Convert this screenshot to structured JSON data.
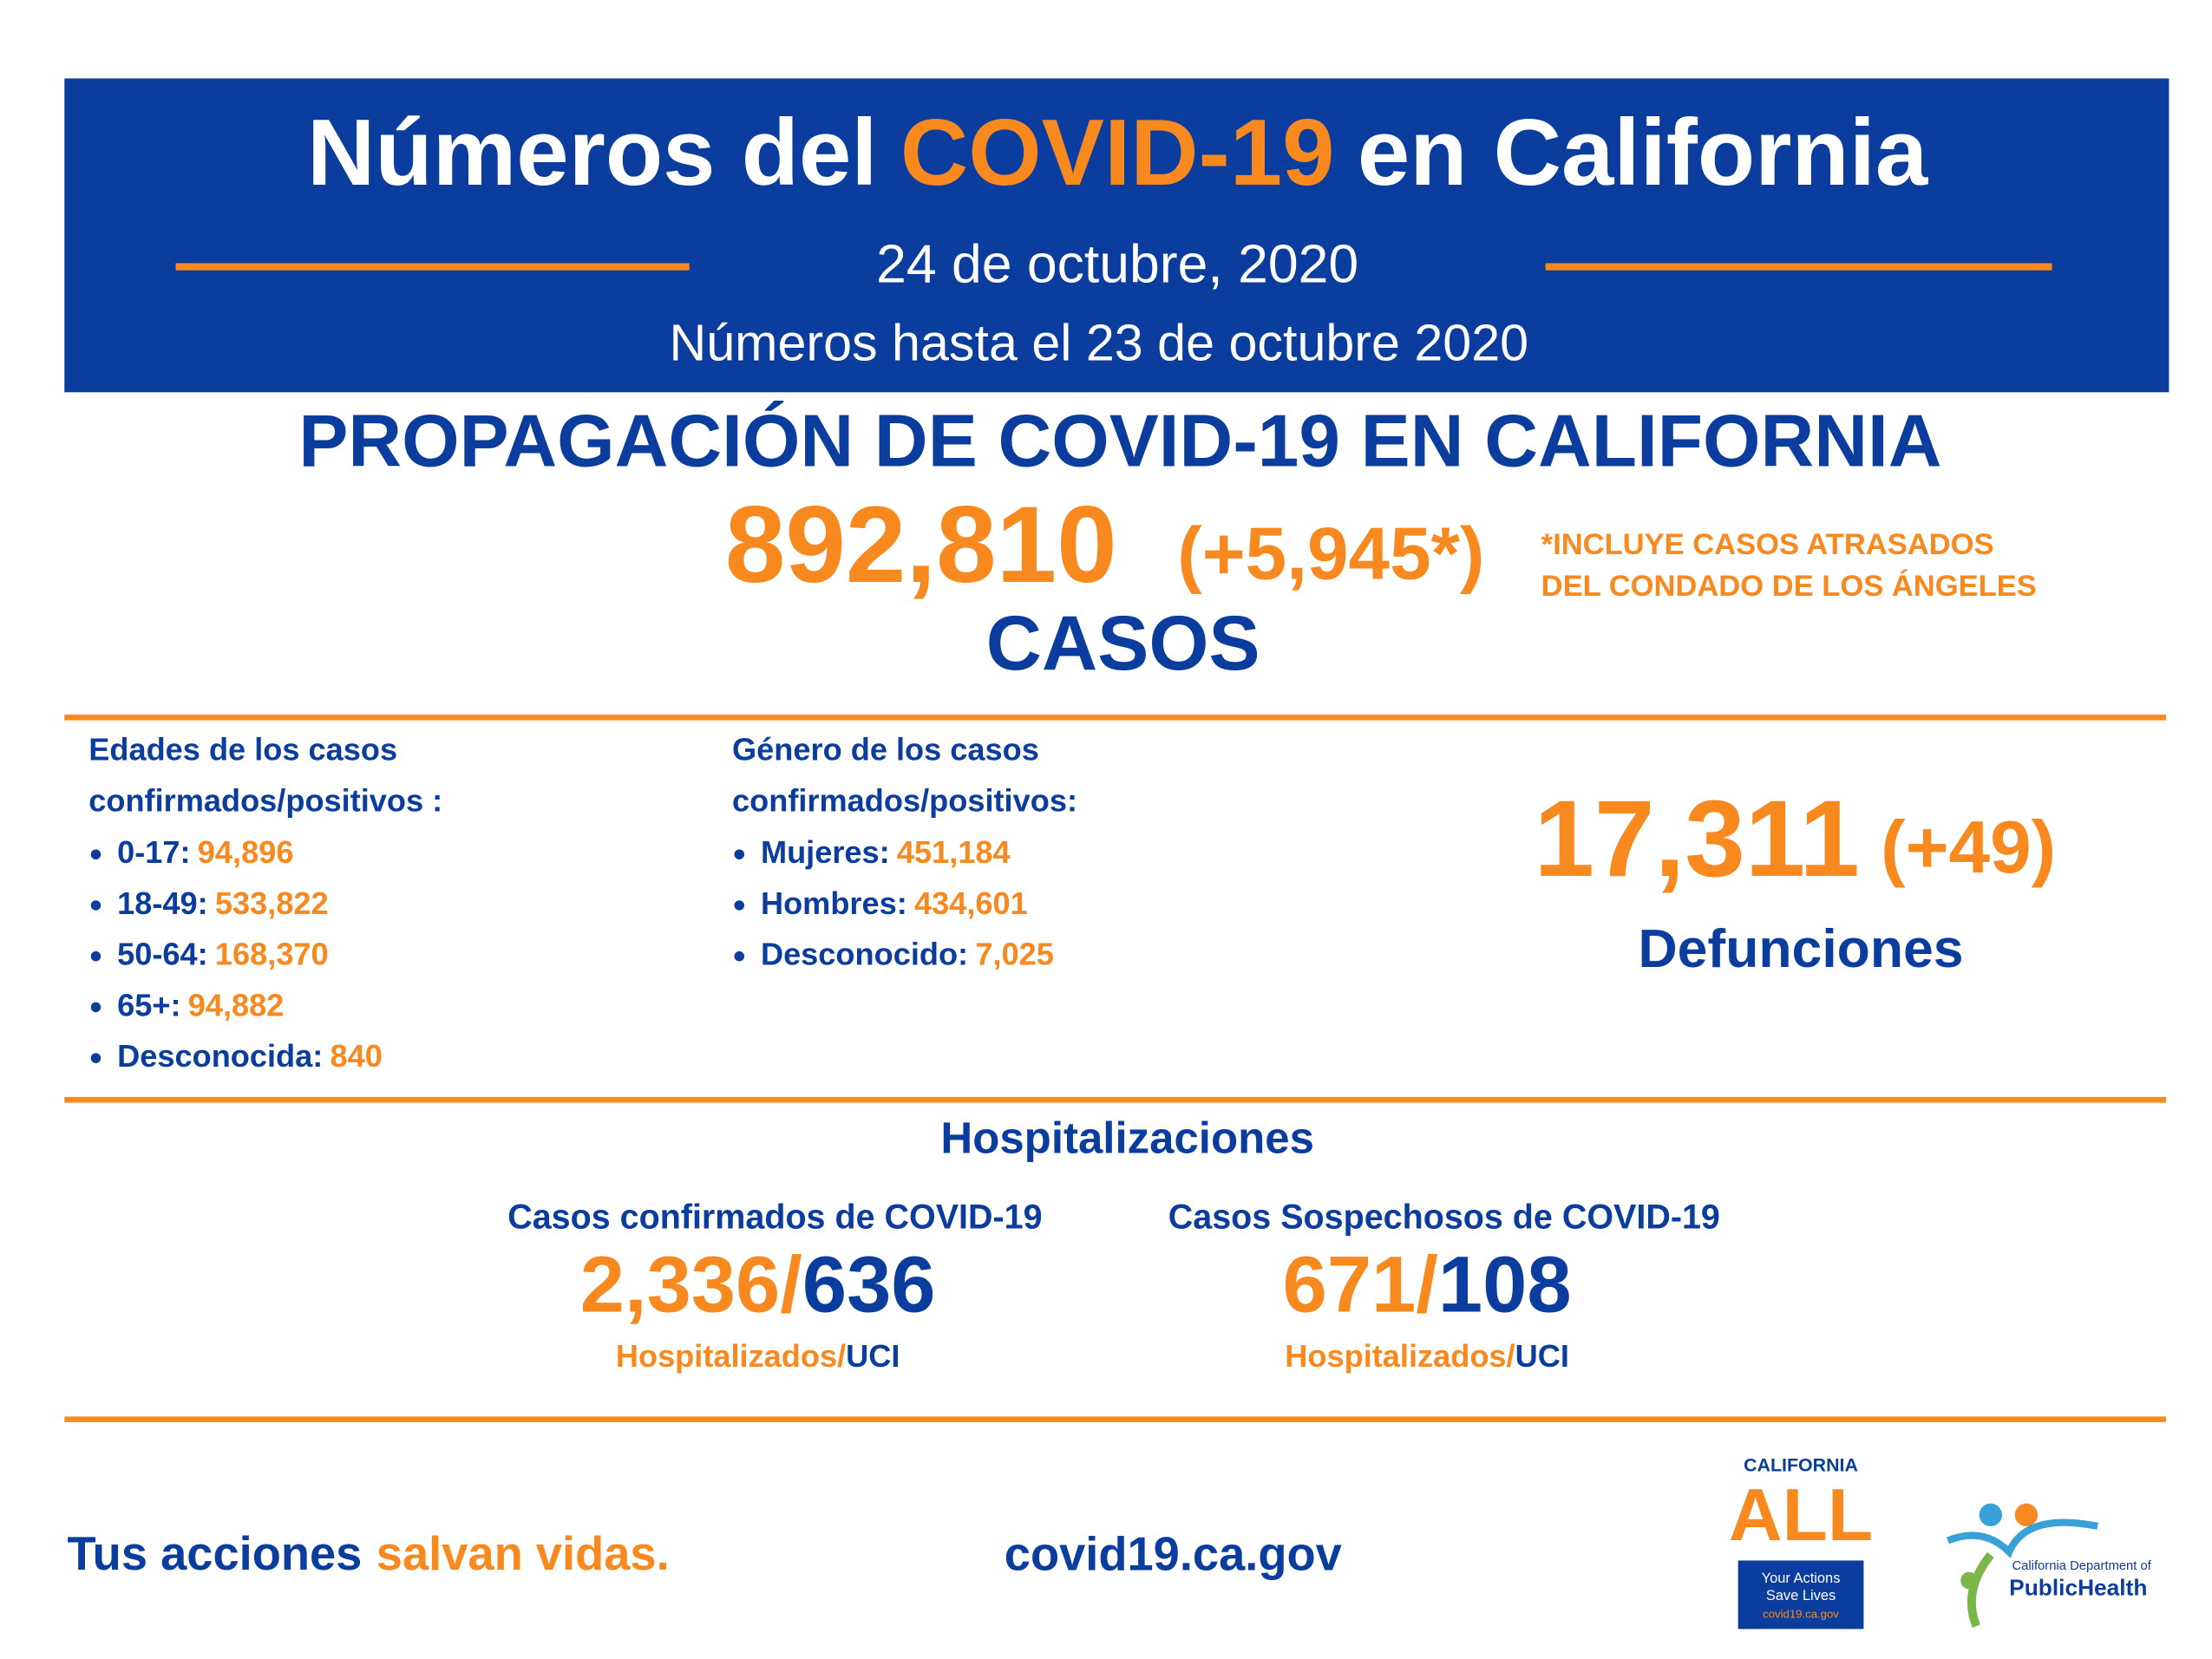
{
  "header": {
    "title": [
      "Números del",
      "COVID-19",
      "en California"
    ],
    "date": "24 de octubre, 2020",
    "subtitle": "Números hasta el 23 de octubre 2020"
  },
  "spread": {
    "heading": "PROPAGACIÓN DE COVID-19 EN CALIFORNIA",
    "cases": "892,810",
    "cases_change": "(+5,945*)",
    "note": [
      "*INCLUYE CASOS ATRASADOS",
      "DEL CONDADO DE LOS ÁNGELES"
    ],
    "cases_label": "CASOS"
  },
  "ages": {
    "heading": [
      "Edades de los casos",
      "confirmados/positivos :"
    ],
    "items": [
      [
        "0-17:",
        "94,896"
      ],
      [
        "18-49:",
        "533,822"
      ],
      [
        "50-64:",
        "168,370"
      ],
      [
        "65+:",
        "94,882"
      ],
      [
        "Desconocida:",
        "840"
      ]
    ]
  },
  "gender": {
    "heading": [
      "Género de los casos",
      "confirmados/positivos:"
    ],
    "items": [
      [
        "Mujeres:",
        "451,184"
      ],
      [
        "Hombres:",
        "434,601"
      ],
      [
        "Desconocido:",
        "7,025"
      ]
    ]
  },
  "deaths": {
    "value": "17,311",
    "change": "(+49)",
    "label": "Defunciones"
  },
  "hospital": {
    "heading": "Hospitalizaciones",
    "groups": [
      {
        "title": "Casos confirmados de COVID-19",
        "hosp": "2,336/",
        "icu": "636",
        "label_hosp": "Hospitalizados/",
        "label_icu": "UCI"
      },
      {
        "title": "Casos Sospechosos de COVID-19",
        "hosp": "671/",
        "icu": "108",
        "label_hosp": "Hospitalizados/",
        "label_icu": "UCI"
      }
    ]
  },
  "footer": {
    "slogan": [
      "Tus acciones",
      "salvan vidas."
    ],
    "url": "covid19.ca.gov"
  },
  "logos": {
    "california_all": [
      "CALIFORNIA",
      "ALL"
    ],
    "tagline": [
      "Your Actions",
      "Save Lives"
    ],
    "tag_url": "covid19.ca.gov",
    "cdph": [
      "California Department of",
      "PublicHealth"
    ]
  }
}
